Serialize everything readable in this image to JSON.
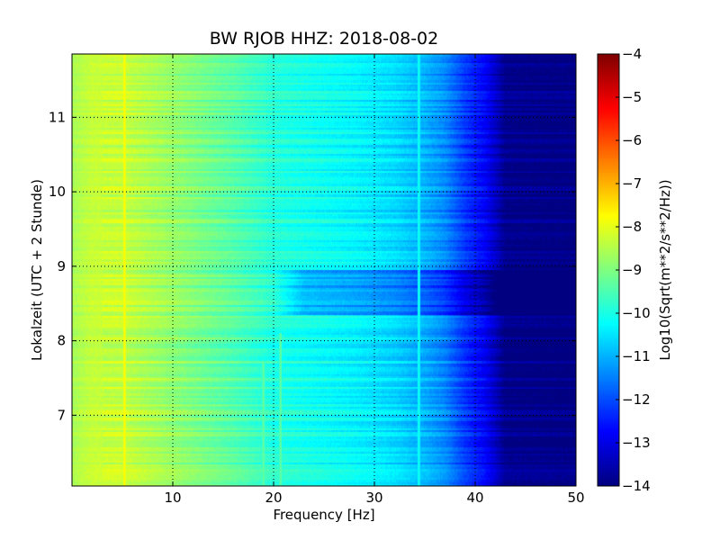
{
  "chart_data": {
    "type": "heatmap",
    "title": "BW RJOB HHZ: 2018-08-02",
    "xlabel": "Frequency [Hz]",
    "ylabel": "Lokalzeit (UTC + 2 Stunde)",
    "colorbar_label": "Log10(Sqrt(m**2/s**2/Hz))",
    "xlim": [
      0,
      50
    ],
    "ylim": [
      11.85,
      6.05
    ],
    "y_inverted": true,
    "x_ticks": [
      10,
      20,
      30,
      40,
      50
    ],
    "x_tick_labels": [
      "10",
      "20",
      "30",
      "40",
      "50"
    ],
    "y_ticks": [
      7,
      8,
      9,
      10,
      11
    ],
    "y_tick_labels": [
      "7",
      "8",
      "9",
      "10",
      "11"
    ],
    "colorbar_range": [
      -14,
      -4
    ],
    "colorbar_ticks": [
      -4,
      -5,
      -6,
      -7,
      -8,
      -9,
      -10,
      -11,
      -12,
      -13,
      -14
    ],
    "colorbar_tick_labels": [
      "−4",
      "−5",
      "−6",
      "−7",
      "−8",
      "−9",
      "−10",
      "−11",
      "−12",
      "−13",
      "−14"
    ],
    "colormap": "jet",
    "grid": true,
    "psd_profile": {
      "frequency_hz": [
        0,
        2,
        5,
        8,
        12,
        16,
        20,
        24,
        28,
        32,
        35,
        37,
        39,
        41,
        42,
        43,
        50
      ],
      "log10_amplitude": [
        -8.6,
        -8.3,
        -8.3,
        -8.6,
        -9.0,
        -9.4,
        -9.9,
        -10.1,
        -10.3,
        -10.6,
        -11.0,
        -11.4,
        -12.2,
        -12.8,
        -13.3,
        -13.9,
        -14.0
      ]
    },
    "spectral_lines": [
      {
        "frequency_hz": 5.2,
        "log10_amplitude": -7.6,
        "time_range": [
          6.05,
          11.85
        ]
      },
      {
        "frequency_hz": 19.0,
        "log10_amplitude": -9.2,
        "time_range": [
          6.05,
          7.7
        ]
      },
      {
        "frequency_hz": 20.7,
        "log10_amplitude": -9.2,
        "time_range": [
          6.05,
          8.1
        ]
      },
      {
        "frequency_hz": 34.4,
        "log10_amplitude": -10.0,
        "time_range": [
          6.05,
          11.85
        ]
      }
    ],
    "quiet_period": {
      "time_range": [
        8.35,
        8.95
      ],
      "frequency_range": [
        20,
        50
      ],
      "offset_log10": -0.9
    }
  }
}
